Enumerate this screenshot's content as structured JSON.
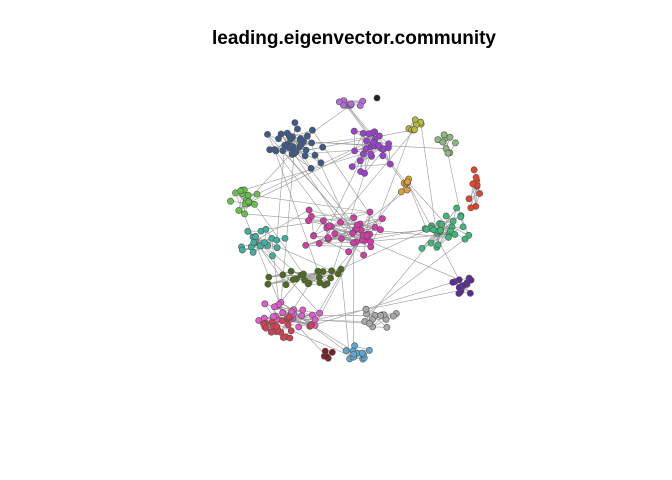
{
  "title": "leading.eigenvector.community",
  "diagram": {
    "type": "network-graph",
    "layout": "circular-cloud",
    "edge_color": "#9a9a9a",
    "node_outline_color": "#555555",
    "communities": [
      {
        "id": "steel-blue",
        "color": "#3c5a8c",
        "nodes": 40
      },
      {
        "id": "purple",
        "color": "#9b3fd0",
        "nodes": 28
      },
      {
        "id": "lavender",
        "color": "#b36bd8",
        "nodes": 10
      },
      {
        "id": "olive-yellow",
        "color": "#b8b83a",
        "nodes": 8
      },
      {
        "id": "sage",
        "color": "#8cb87a",
        "nodes": 9
      },
      {
        "id": "red",
        "color": "#e0452d",
        "nodes": 10
      },
      {
        "id": "orange",
        "color": "#e0a030",
        "nodes": 7
      },
      {
        "id": "grass-green",
        "color": "#6abf4b",
        "nodes": 16
      },
      {
        "id": "magenta",
        "color": "#d43aa6",
        "nodes": 42
      },
      {
        "id": "teal",
        "color": "#3fb0a0",
        "nodes": 22
      },
      {
        "id": "emerald",
        "color": "#3db87a",
        "nodes": 30
      },
      {
        "id": "dark-olive",
        "color": "#4e6b1e",
        "nodes": 22
      },
      {
        "id": "indigo",
        "color": "#5a2a9a",
        "nodes": 14
      },
      {
        "id": "pink",
        "color": "#e05ac8",
        "nodes": 26
      },
      {
        "id": "crimson",
        "color": "#d6404e",
        "nodes": 22
      },
      {
        "id": "gray",
        "color": "#a8a8a8",
        "nodes": 14
      },
      {
        "id": "sky-blue",
        "color": "#5ba8d0",
        "nodes": 12
      },
      {
        "id": "maroon",
        "color": "#7a1f22",
        "nodes": 5
      },
      {
        "id": "black",
        "color": "#222222",
        "nodes": 1
      }
    ]
  }
}
